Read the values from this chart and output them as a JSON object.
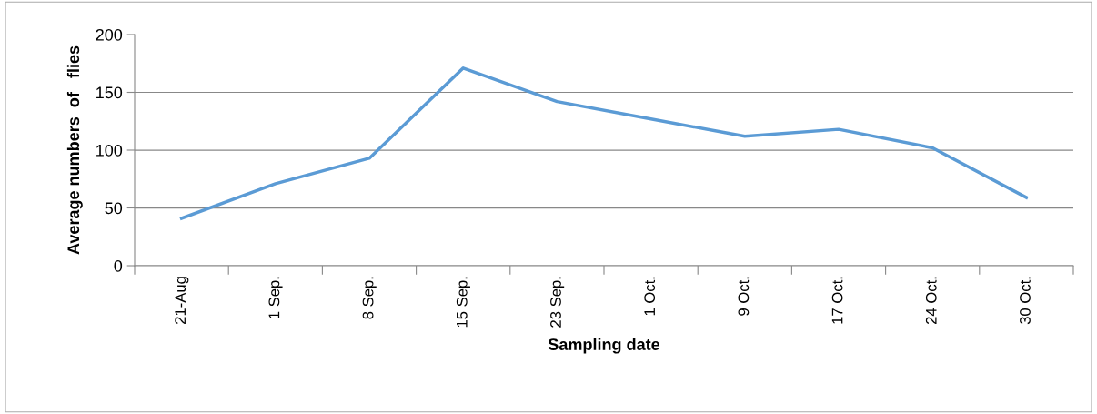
{
  "chart_data": {
    "type": "line",
    "xlabel": "Sampling date",
    "ylabel": "Average numbers  of   flies",
    "categories": [
      "21-Aug",
      "1 Sep.",
      "8 Sep.",
      "15 Sep.",
      "23 Sep.",
      "1 Oct.",
      "9 Oct.",
      "17 Oct.",
      "24 Oct.",
      "30 Oct."
    ],
    "series": [
      {
        "color": "#5b9bd5",
        "values": [
          41,
          71,
          93,
          171,
          142,
          127,
          112,
          118,
          102,
          59
        ]
      }
    ],
    "ylim": [
      0,
      200
    ],
    "yticks": [
      0,
      50,
      100,
      150,
      200
    ],
    "grid": "y",
    "legend": false,
    "marker": "none",
    "line_style": "solid"
  }
}
